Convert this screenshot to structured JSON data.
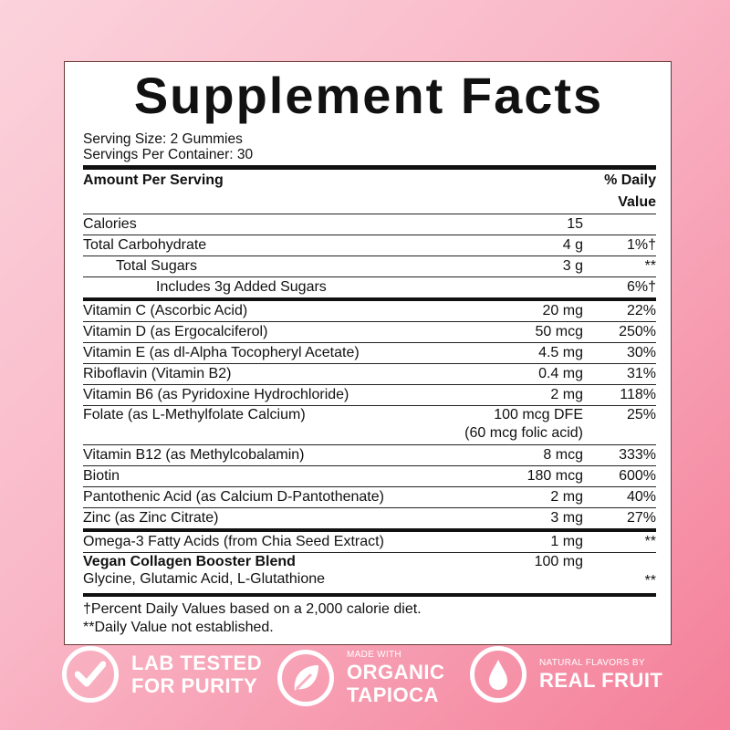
{
  "title": "Supplement Facts",
  "serving_size": "Serving Size: 2 Gummies",
  "servings_per_container": "Servings Per Container: 30",
  "header": {
    "amount": "Amount Per Serving",
    "dv": "% Daily Value"
  },
  "rows": [
    {
      "name": "Calories",
      "amount": "15",
      "dv": ""
    },
    {
      "name": "Total Carbohydrate",
      "amount": "4 g",
      "dv": "1%†"
    },
    {
      "name": "Total Sugars",
      "amount": "3 g",
      "dv": "**"
    },
    {
      "name": "Includes 3g Added Sugars",
      "amount": "",
      "dv": "6%†"
    },
    {
      "name": "Vitamin C (Ascorbic Acid)",
      "amount": "20 mg",
      "dv": "22%"
    },
    {
      "name": "Vitamin D (as Ergocalciferol)",
      "amount": "50 mcg",
      "dv": "250%"
    },
    {
      "name": "Vitamin E (as dl-Alpha Tocopheryl Acetate)",
      "amount": "4.5 mg",
      "dv": "30%"
    },
    {
      "name": "Riboflavin (Vitamin B2)",
      "amount": "0.4 mg",
      "dv": "31%"
    },
    {
      "name": "Vitamin B6 (as Pyridoxine Hydrochloride)",
      "amount": "2 mg",
      "dv": "118%"
    },
    {
      "name": "Folate (as L-Methylfolate Calcium)",
      "amount": "100 mcg DFE",
      "amount2": "(60 mcg folic acid)",
      "dv": "25%"
    },
    {
      "name": "Vitamin B12 (as Methylcobalamin)",
      "amount": "8 mcg",
      "dv": "333%"
    },
    {
      "name": "Biotin",
      "amount": "180 mcg",
      "dv": "600%"
    },
    {
      "name": "Pantothenic Acid (as Calcium D-Pantothenate)",
      "amount": "2 mg",
      "dv": "40%"
    },
    {
      "name": "Zinc (as Zinc Citrate)",
      "amount": "3 mg",
      "dv": "27%"
    },
    {
      "name": "Omega-3 Fatty Acids (from Chia Seed Extract)",
      "amount": "1 mg",
      "dv": "**"
    },
    {
      "name": "Vegan Collagen Booster Blend",
      "sub": "Glycine, Glutamic Acid, L-Glutathione",
      "amount": "100 mg",
      "dv": "**"
    }
  ],
  "footnotes": [
    "†Percent Daily Values based on a 2,000 calorie diet.",
    "**Daily Value not established."
  ],
  "badges": [
    {
      "icon": "check-icon",
      "small": "",
      "line1": "LAB TESTED",
      "line2": "FOR PURITY"
    },
    {
      "icon": "leaf-icon",
      "small": "MADE WITH",
      "line1": "ORGANIC",
      "line2": "TAPIOCA"
    },
    {
      "icon": "water-drop-icon",
      "small": "NATURAL FLAVORS BY",
      "line1": "REAL FRUIT",
      "line2": ""
    }
  ]
}
